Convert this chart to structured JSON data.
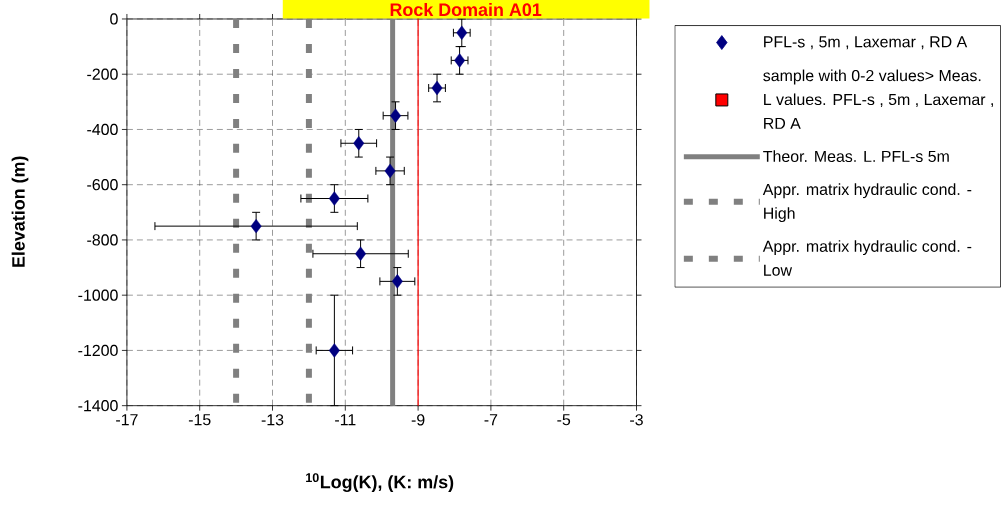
{
  "chart_data": {
    "type": "scatter",
    "title": "Rock Domain A01",
    "xlabel": "$^{10}$Log(K),  (K: m/s)",
    "ylabel": "Elevation (m)",
    "xlim": [
      -17,
      -3
    ],
    "ylim": [
      -1400,
      0
    ],
    "xticks": [
      -17,
      -15,
      -13,
      -11,
      -9,
      -7,
      -5,
      -3
    ],
    "yticks": [
      -1400,
      -1200,
      -1000,
      -800,
      -600,
      -400,
      -200,
      0
    ],
    "grid": true,
    "legend": "right",
    "series": [
      {
        "name": "PFL-s , 5m , Laxemar , RD A",
        "color": "#000080",
        "marker": "diamond",
        "x": [
          -7.8,
          -7.86,
          -8.48,
          -9.62,
          -10.63,
          -9.77,
          -11.3,
          -13.45,
          -10.58,
          -9.57,
          -11.3
        ],
        "values": [
          -50,
          -150,
          -250,
          -350,
          -450,
          -550,
          -650,
          -750,
          -850,
          -950,
          -1200
        ],
        "errors": [
          50,
          50,
          50,
          50,
          50,
          50,
          50,
          50,
          50,
          50,
          200
        ],
        "xerrors": [
          0.23,
          0.23,
          0.23,
          0.34,
          0.49,
          0.39,
          0.92,
          2.78,
          1.31,
          0.48,
          0.5
        ]
      },
      {
        "name": "sample with 0-2 values> Meas. L values. PFL-s , 5m , Laxemar ,   RD A",
        "color": "#ff0000",
        "marker": "square"
      },
      {
        "name": "Theor. Meas. L. PFL-s 5m",
        "type": "line",
        "color": "#808080",
        "marker": "none",
        "line_style": "solid",
        "x": [
          -9.7,
          -9.7
        ],
        "values": [
          0,
          -1400
        ]
      },
      {
        "name": "Appr. matrix hydraulic cond. - High",
        "type": "line",
        "color": "#808080",
        "marker": "none",
        "line_style": "dashed",
        "x": [
          -12,
          -12
        ],
        "values": [
          0,
          -1400
        ]
      },
      {
        "name": "Appr. matrix hydraulic cond. - Low",
        "type": "line",
        "color": "#808080",
        "marker": "none",
        "line_style": "dashed",
        "x": [
          -14,
          -14
        ],
        "values": [
          0,
          -1400
        ]
      }
    ],
    "ref_lines": [
      {
        "axis": "x",
        "value": -9,
        "color": "#ff0000"
      }
    ]
  }
}
